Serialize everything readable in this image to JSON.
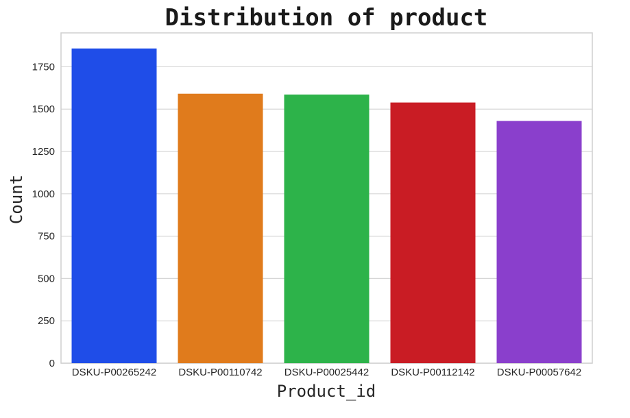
{
  "chart_data": {
    "type": "bar",
    "title": "Distribution of product",
    "xlabel": "Product_id",
    "ylabel": "Count",
    "categories": [
      "DSKU-P00265242",
      "DSKU-P00110742",
      "DSKU-P00025442",
      "DSKU-P00112142",
      "DSKU-P00057642"
    ],
    "values": [
      1858,
      1591,
      1586,
      1539,
      1430
    ],
    "colors": [
      "#1f4de8",
      "#e07b1c",
      "#2db34a",
      "#c91c24",
      "#8a3fcc"
    ],
    "yticks": [
      0,
      250,
      500,
      750,
      1000,
      1250,
      1500,
      1750
    ],
    "ylim": [
      0,
      1950
    ],
    "grid": true,
    "legend": "none"
  }
}
